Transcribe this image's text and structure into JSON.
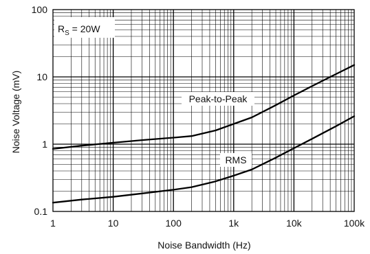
{
  "chart_data": {
    "type": "line",
    "title": "",
    "xlabel": "Noise Bandwidth (Hz)",
    "ylabel": "Noise Voltage  (mV)",
    "x_scale": "log",
    "y_scale": "log",
    "xlim": [
      1,
      100000
    ],
    "ylim": [
      0.1,
      100
    ],
    "grid": true,
    "x_ticks": [
      {
        "value": 1,
        "label": "1"
      },
      {
        "value": 10,
        "label": "10"
      },
      {
        "value": 100,
        "label": "100"
      },
      {
        "value": 1000,
        "label": "1k"
      },
      {
        "value": 10000,
        "label": "10k"
      },
      {
        "value": 100000,
        "label": "100k"
      }
    ],
    "y_ticks": [
      {
        "value": 0.1,
        "label": "0.1"
      },
      {
        "value": 1,
        "label": "1"
      },
      {
        "value": 10,
        "label": "10"
      },
      {
        "value": 100,
        "label": "100"
      }
    ],
    "annotation": {
      "main": "R",
      "sub": "S",
      "rest": " = 20W"
    },
    "series": [
      {
        "name": "Peak-to-Peak",
        "x": [
          1,
          3,
          10,
          30,
          100,
          200,
          500,
          1000,
          2000,
          5000,
          10000,
          20000,
          50000,
          100000
        ],
        "y": [
          0.85,
          0.95,
          1.05,
          1.15,
          1.25,
          1.32,
          1.6,
          2.0,
          2.5,
          3.8,
          5.3,
          7.3,
          11.0,
          15.0
        ]
      },
      {
        "name": "RMS",
        "x": [
          1,
          3,
          10,
          30,
          100,
          200,
          500,
          1000,
          2000,
          5000,
          10000,
          20000,
          50000,
          100000
        ],
        "y": [
          0.135,
          0.15,
          0.165,
          0.185,
          0.21,
          0.23,
          0.28,
          0.34,
          0.42,
          0.63,
          0.87,
          1.2,
          1.85,
          2.6
        ]
      }
    ]
  }
}
